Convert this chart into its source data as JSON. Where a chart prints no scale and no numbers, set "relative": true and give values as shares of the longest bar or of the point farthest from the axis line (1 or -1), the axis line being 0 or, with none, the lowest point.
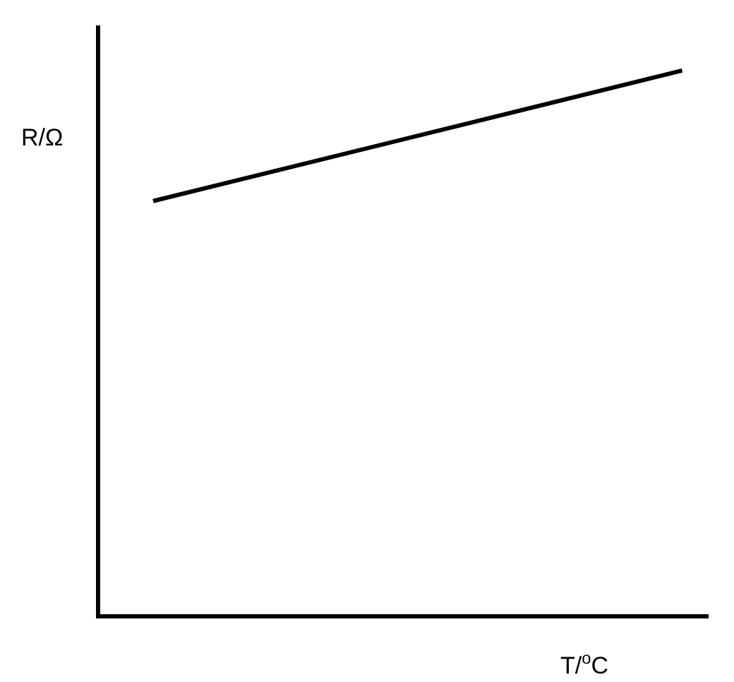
{
  "chart_data": {
    "type": "line",
    "relative": true,
    "xlabel": "T/$^{o}$C",
    "ylabel": "R/Ω",
    "categories": [
      null,
      null,
      null,
      null,
      null,
      null,
      null,
      null,
      null,
      null,
      null,
      null,
      null,
      null,
      null,
      null,
      null,
      null,
      null,
      null,
      null,
      null,
      null,
      null
    ],
    "series": [
      {
        "color": "#000000",
        "values": [
          null,
          null,
          0.76,
          null,
          null,
          null,
          null,
          null,
          null,
          null,
          null,
          null,
          null,
          null,
          null,
          null,
          null,
          null,
          null,
          null,
          null,
          null,
          1,
          null
        ]
      }
    ],
    "marker": "none",
    "line_style": "solid"
  }
}
